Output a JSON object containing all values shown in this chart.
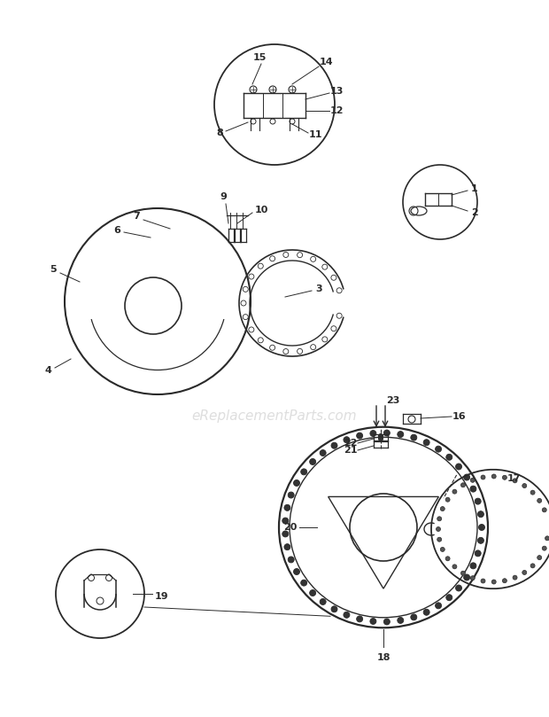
{
  "bg_color": "#ffffff",
  "line_color": "#2a2a2a",
  "watermark": "eReplacementParts.com",
  "watermark_color": "#c8c8c8",
  "watermark_fontsize": 11
}
